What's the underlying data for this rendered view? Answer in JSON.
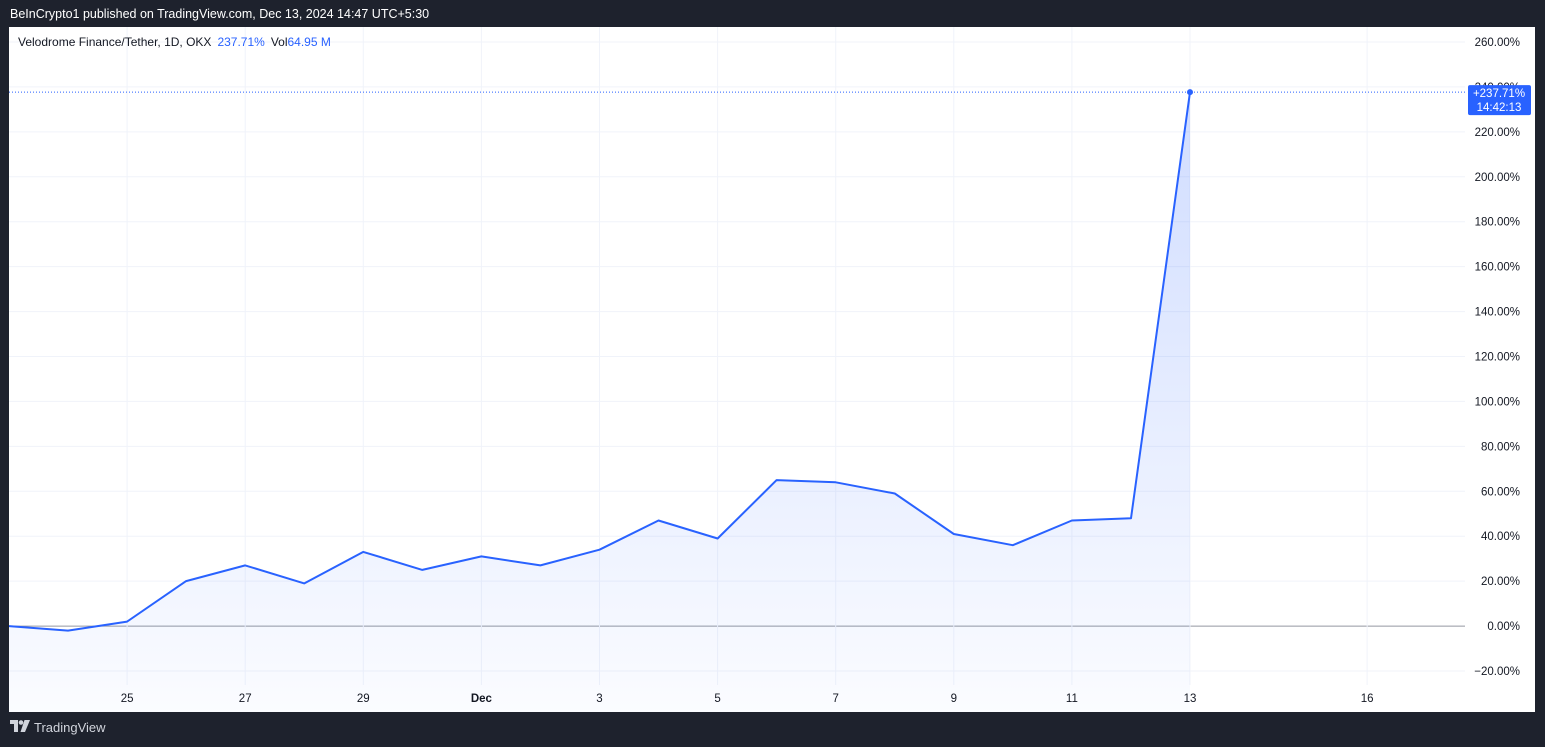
{
  "header": {
    "published_text": "BeInCrypto1 published on TradingView.com, Dec 13, 2024 14:47 UTC+5:30"
  },
  "legend": {
    "symbol": "Velodrome Finance/Tether, 1D, OKX",
    "change_pct": "237.71%",
    "vol_label": "Vol",
    "vol_value": "64.95 M"
  },
  "last_price_tag": {
    "value": "+237.71%",
    "time": "14:42:13"
  },
  "footer": {
    "brand": "TradingView"
  },
  "colors": {
    "line": "#2962ff",
    "tag_bg": "#2962ff",
    "grid": "#f0f3fa",
    "zero_line": "#9598a1",
    "background_outer": "#1e222d"
  },
  "chart_data": {
    "type": "area",
    "x_tick_labels": [
      "25",
      "27",
      "29",
      "Dec",
      "3",
      "5",
      "7",
      "9",
      "11",
      "13",
      "16"
    ],
    "y_tick_labels": [
      "260.00%",
      "240.00%",
      "220.00%",
      "200.00%",
      "180.00%",
      "160.00%",
      "140.00%",
      "120.00%",
      "100.00%",
      "80.00%",
      "60.00%",
      "40.00%",
      "20.00%",
      "0.00%",
      "−20.00%"
    ],
    "ylim": [
      -20,
      260
    ],
    "x_dates": [
      "Nov 23",
      "Nov 24",
      "Nov 25",
      "Nov 26",
      "Nov 27",
      "Nov 28",
      "Nov 29",
      "Nov 30",
      "Dec 1",
      "Dec 2",
      "Dec 3",
      "Dec 4",
      "Dec 5",
      "Dec 6",
      "Dec 7",
      "Dec 8",
      "Dec 9",
      "Dec 10",
      "Dec 11",
      "Dec 12",
      "Dec 13"
    ],
    "values": [
      0,
      -2,
      2,
      20,
      27,
      19,
      33,
      25,
      31,
      27,
      34,
      47,
      39,
      65,
      64,
      59,
      41,
      36,
      47,
      48,
      237.71
    ],
    "last_value": 237.71
  }
}
